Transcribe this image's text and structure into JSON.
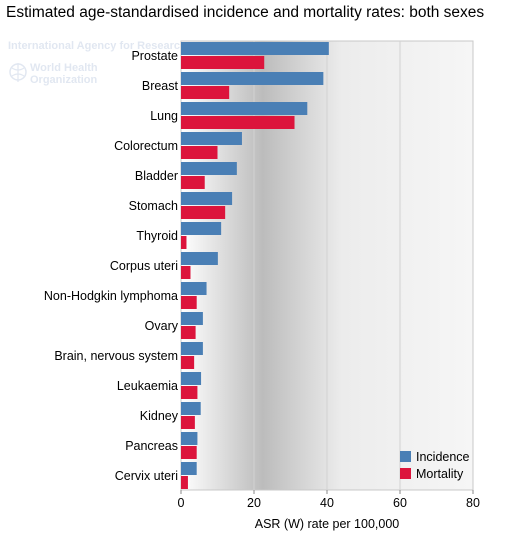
{
  "title": "Estimated age-standardised incidence and mortality rates: both sexes",
  "watermark": {
    "agency": "International Agency for Research on Cancer",
    "who_line1": "World Health",
    "who_line2": "Organization"
  },
  "colors": {
    "incidence": "#4a7fb5",
    "mortality": "#dc143c"
  },
  "chart_data": {
    "type": "bar",
    "orientation": "horizontal",
    "categories": [
      "Prostate",
      "Breast",
      "Lung",
      "Colorectum",
      "Bladder",
      "Stomach",
      "Thyroid",
      "Corpus uteri",
      "Non-Hodgkin lymphoma",
      "Ovary",
      "Brain, nervous system",
      "Leukaemia",
      "Kidney",
      "Pancreas",
      "Cervix uteri"
    ],
    "series": [
      {
        "name": "Incidence",
        "values": [
          40.5,
          39.0,
          34.6,
          16.7,
          15.3,
          14.0,
          11.0,
          10.1,
          7.0,
          6.0,
          6.0,
          5.5,
          5.4,
          4.5,
          4.3
        ]
      },
      {
        "name": "Mortality",
        "values": [
          22.8,
          13.2,
          31.1,
          10.0,
          6.5,
          12.1,
          1.5,
          2.6,
          4.3,
          4.0,
          3.6,
          4.5,
          3.8,
          4.3,
          1.9
        ]
      }
    ],
    "xlabel": "ASR (W) rate per 100,000",
    "xlim": [
      0,
      80
    ],
    "xticks": [
      "0",
      "20",
      "40",
      "60",
      "80"
    ],
    "grid": true,
    "legend_position": "bottom-right"
  }
}
